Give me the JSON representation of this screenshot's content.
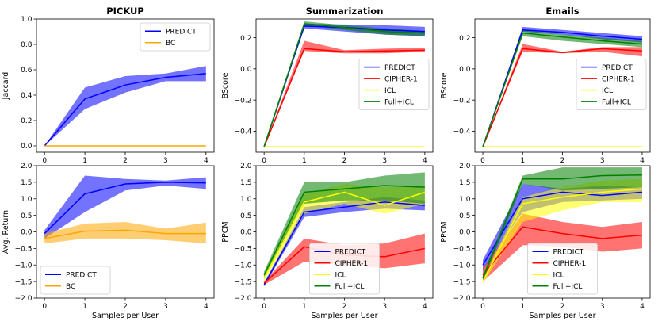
{
  "chart_data": [
    {
      "id": "pickup-jaccard",
      "type": "line",
      "title": "PICKUP",
      "xlabel": "",
      "ylabel": "Jaccard",
      "x": [
        0,
        1,
        2,
        3,
        4
      ],
      "xlim": [
        -0.2,
        4.2
      ],
      "ylim": [
        -0.05,
        1.0
      ],
      "xticks": [
        "0",
        "1",
        "2",
        "3",
        "4"
      ],
      "yticks": [
        0.0,
        0.2,
        0.4,
        0.6,
        0.8,
        1.0
      ],
      "ytick_labels": [
        "0.0",
        "0.2",
        "0.4",
        "0.6",
        "0.8",
        "1.0"
      ],
      "legend_position": "top-right",
      "series": [
        {
          "name": "PREDICT",
          "color": "#0000ff",
          "values": [
            0.0,
            0.37,
            0.48,
            0.54,
            0.57
          ],
          "lower": [
            0.0,
            0.29,
            0.42,
            0.51,
            0.51
          ],
          "upper": [
            0.0,
            0.46,
            0.55,
            0.57,
            0.63
          ]
        },
        {
          "name": "BC",
          "color": "#ffa500",
          "values": [
            0.0,
            0.0,
            0.0,
            0.0,
            0.0
          ],
          "lower": [
            0.0,
            0.0,
            0.0,
            0.0,
            0.0
          ],
          "upper": [
            0.0,
            0.0,
            0.0,
            0.0,
            0.0
          ]
        }
      ]
    },
    {
      "id": "summ-bscore",
      "type": "line",
      "title": "Summarization",
      "xlabel": "",
      "ylabel": "BScore",
      "x": [
        0,
        1,
        2,
        3,
        4
      ],
      "xlim": [
        -0.2,
        4.2
      ],
      "ylim": [
        -0.535,
        0.32
      ],
      "xticks": [
        "0",
        "1",
        "2",
        "3",
        "4"
      ],
      "yticks": [
        -0.4,
        -0.2,
        0.0,
        0.2
      ],
      "ytick_labels": [
        "−0.4",
        "−0.2",
        "0.0",
        "0.2"
      ],
      "legend_position": "center-right",
      "series": [
        {
          "name": "PREDICT",
          "color": "#0000ff",
          "values": [
            -0.5,
            0.275,
            0.265,
            0.25,
            0.24
          ],
          "lower": [
            -0.5,
            0.26,
            0.24,
            0.22,
            0.21
          ],
          "upper": [
            -0.5,
            0.29,
            0.285,
            0.28,
            0.27
          ]
        },
        {
          "name": "CIPHER-1",
          "color": "#ff0000",
          "values": [
            -0.5,
            0.13,
            0.11,
            0.115,
            0.12
          ],
          "lower": [
            -0.5,
            0.115,
            0.1,
            0.1,
            0.11
          ],
          "upper": [
            -0.5,
            0.18,
            0.12,
            0.13,
            0.135
          ]
        },
        {
          "name": "ICL",
          "color": "#ffff00",
          "values": [
            -0.5,
            -0.5,
            -0.5,
            -0.5,
            -0.5
          ],
          "lower": [
            -0.5,
            -0.5,
            -0.5,
            -0.5,
            -0.5
          ],
          "upper": [
            -0.5,
            -0.5,
            -0.5,
            -0.5,
            -0.5
          ]
        },
        {
          "name": "Full+ICL",
          "color": "#008000",
          "values": [
            -0.5,
            0.29,
            0.265,
            0.24,
            0.23
          ],
          "lower": [
            -0.5,
            0.28,
            0.25,
            0.22,
            0.21
          ],
          "upper": [
            -0.5,
            0.305,
            0.28,
            0.26,
            0.245
          ]
        }
      ]
    },
    {
      "id": "emails-bscore",
      "type": "line",
      "title": "Emails",
      "xlabel": "",
      "ylabel": "BScore",
      "x": [
        0,
        1,
        2,
        3,
        4
      ],
      "xlim": [
        -0.2,
        4.2
      ],
      "ylim": [
        -0.535,
        0.32
      ],
      "xticks": [
        "0",
        "1",
        "2",
        "3",
        "4"
      ],
      "yticks": [
        -0.4,
        -0.2,
        0.0,
        0.2
      ],
      "ytick_labels": [
        "−0.4",
        "−0.2",
        "0.0",
        "0.2"
      ],
      "legend_position": "center-right",
      "series": [
        {
          "name": "PREDICT",
          "color": "#0000ff",
          "values": [
            -0.5,
            0.25,
            0.235,
            0.21,
            0.19
          ],
          "lower": [
            -0.5,
            0.24,
            0.22,
            0.19,
            0.17
          ],
          "upper": [
            -0.5,
            0.27,
            0.25,
            0.23,
            0.21
          ]
        },
        {
          "name": "CIPHER-1",
          "color": "#ff0000",
          "values": [
            -0.5,
            0.13,
            0.105,
            0.13,
            0.115
          ],
          "lower": [
            -0.5,
            0.11,
            0.1,
            0.11,
            0.08
          ],
          "upper": [
            -0.5,
            0.16,
            0.11,
            0.14,
            0.14
          ]
        },
        {
          "name": "ICL",
          "color": "#ffff00",
          "values": [
            -0.5,
            -0.5,
            -0.5,
            -0.5,
            -0.5
          ],
          "lower": [
            -0.5,
            -0.5,
            -0.5,
            -0.5,
            -0.5
          ],
          "upper": [
            -0.5,
            -0.5,
            -0.5,
            -0.5,
            -0.5
          ]
        },
        {
          "name": "Full+ICL",
          "color": "#008000",
          "values": [
            -0.5,
            0.23,
            0.205,
            0.18,
            0.16
          ],
          "lower": [
            -0.5,
            0.21,
            0.18,
            0.16,
            0.14
          ],
          "upper": [
            -0.5,
            0.25,
            0.22,
            0.2,
            0.18
          ]
        }
      ]
    },
    {
      "id": "pickup-return",
      "type": "line",
      "title": "",
      "xlabel": "Samples per User",
      "ylabel": "Avg. Return",
      "x": [
        0,
        1,
        2,
        3,
        4
      ],
      "xlim": [
        -0.2,
        4.2
      ],
      "ylim": [
        -2.0,
        2.0
      ],
      "xticks": [
        "0",
        "1",
        "2",
        "3",
        "4"
      ],
      "yticks": [
        -2.0,
        -1.5,
        -1.0,
        -0.5,
        0.0,
        0.5,
        1.0,
        1.5,
        2.0
      ],
      "ytick_labels": [
        "−2.0",
        "−1.5",
        "−1.0",
        "−0.5",
        "0.0",
        "0.5",
        "1.0",
        "1.5",
        "2.0"
      ],
      "legend_position": "lower-left",
      "series": [
        {
          "name": "PREDICT",
          "color": "#0000ff",
          "values": [
            -0.05,
            1.15,
            1.45,
            1.5,
            1.48
          ],
          "lower": [
            -0.2,
            0.6,
            1.25,
            1.4,
            1.3
          ],
          "upper": [
            0.05,
            1.7,
            1.6,
            1.55,
            1.65
          ]
        },
        {
          "name": "BC",
          "color": "#ffa500",
          "values": [
            -0.2,
            0.02,
            0.05,
            -0.05,
            -0.05
          ],
          "lower": [
            -0.35,
            -0.2,
            -0.2,
            -0.25,
            -0.35
          ],
          "upper": [
            -0.05,
            0.25,
            0.3,
            0.1,
            0.28
          ]
        }
      ]
    },
    {
      "id": "summ-ppcm",
      "type": "line",
      "title": "",
      "xlabel": "Samples per User",
      "ylabel": "PPCM",
      "x": [
        0,
        1,
        2,
        3,
        4
      ],
      "xlim": [
        -0.2,
        4.2
      ],
      "ylim": [
        -2.0,
        2.0
      ],
      "xticks": [
        "0",
        "1",
        "2",
        "3",
        "4"
      ],
      "yticks": [
        -2.0,
        -1.5,
        -1.0,
        -0.5,
        0.0,
        0.5,
        1.0,
        1.5,
        2.0
      ],
      "ytick_labels": [
        "−2.0",
        "−1.5",
        "−1.0",
        "−0.5",
        "0.0",
        "0.5",
        "1.0",
        "1.5",
        "2.0"
      ],
      "legend_position": "lower-center",
      "series": [
        {
          "name": "PREDICT",
          "color": "#0000ff",
          "values": [
            -1.6,
            0.6,
            0.75,
            0.9,
            0.8
          ],
          "lower": [
            -1.65,
            0.45,
            0.6,
            0.7,
            0.65
          ],
          "upper": [
            -1.55,
            0.75,
            0.9,
            1.05,
            0.95
          ]
        },
        {
          "name": "CIPHER-1",
          "color": "#ff0000",
          "values": [
            -1.55,
            -0.45,
            -0.7,
            -0.75,
            -0.5
          ],
          "lower": [
            -1.6,
            -0.9,
            -1.0,
            -1.1,
            -0.95
          ],
          "upper": [
            -1.5,
            -0.2,
            -0.4,
            -0.35,
            -0.05
          ]
        },
        {
          "name": "ICL",
          "color": "#ffff00",
          "values": [
            -1.4,
            0.9,
            1.2,
            0.8,
            1.2
          ],
          "lower": [
            -1.5,
            0.55,
            0.85,
            0.55,
            0.85
          ],
          "upper": [
            -1.3,
            1.15,
            1.45,
            1.35,
            1.4
          ]
        },
        {
          "name": "Full+ICL",
          "color": "#008000",
          "values": [
            -1.3,
            1.2,
            1.3,
            1.4,
            1.35
          ],
          "lower": [
            -1.4,
            0.85,
            0.95,
            0.95,
            0.85
          ],
          "upper": [
            -1.2,
            1.5,
            1.5,
            1.7,
            1.8
          ]
        }
      ]
    },
    {
      "id": "emails-ppcm",
      "type": "line",
      "title": "",
      "xlabel": "Samples per User",
      "ylabel": "PPCM",
      "x": [
        0,
        1,
        2,
        3,
        4
      ],
      "xlim": [
        -0.2,
        4.2
      ],
      "ylim": [
        -2.0,
        2.0
      ],
      "xticks": [
        "0",
        "1",
        "2",
        "3",
        "4"
      ],
      "yticks": [
        -2.0,
        -1.5,
        -1.0,
        -0.5,
        0.0,
        0.5,
        1.0,
        1.5,
        2.0
      ],
      "ytick_labels": [
        "−2.0",
        "−1.5",
        "−1.0",
        "−0.5",
        "0.0",
        "0.5",
        "1.0",
        "1.5",
        "2.0"
      ],
      "legend_position": "lower-center",
      "series": [
        {
          "name": "PREDICT",
          "color": "#0000ff",
          "values": [
            -1.0,
            1.0,
            1.2,
            1.1,
            1.2
          ],
          "lower": [
            -1.15,
            0.6,
            0.9,
            0.95,
            1.0
          ],
          "upper": [
            -0.85,
            1.45,
            1.3,
            1.4,
            1.35
          ]
        },
        {
          "name": "CIPHER-1",
          "color": "#ff0000",
          "values": [
            -1.3,
            0.15,
            -0.05,
            -0.2,
            -0.1
          ],
          "lower": [
            -1.5,
            -0.4,
            -0.45,
            -0.6,
            -0.5
          ],
          "upper": [
            -1.1,
            0.55,
            0.3,
            0.15,
            0.3
          ]
        },
        {
          "name": "ICL",
          "color": "#ffff00",
          "values": [
            -1.5,
            0.85,
            1.05,
            1.2,
            1.3
          ],
          "lower": [
            -1.55,
            0.3,
            0.65,
            0.9,
            0.9
          ],
          "upper": [
            -1.45,
            1.05,
            1.35,
            1.55,
            1.6
          ]
        },
        {
          "name": "Full+ICL",
          "color": "#008000",
          "values": [
            -1.4,
            1.6,
            1.6,
            1.7,
            1.72
          ],
          "lower": [
            -1.5,
            1.45,
            1.25,
            1.3,
            1.35
          ],
          "upper": [
            -1.3,
            1.7,
            1.95,
            1.95,
            1.95
          ]
        }
      ]
    }
  ]
}
